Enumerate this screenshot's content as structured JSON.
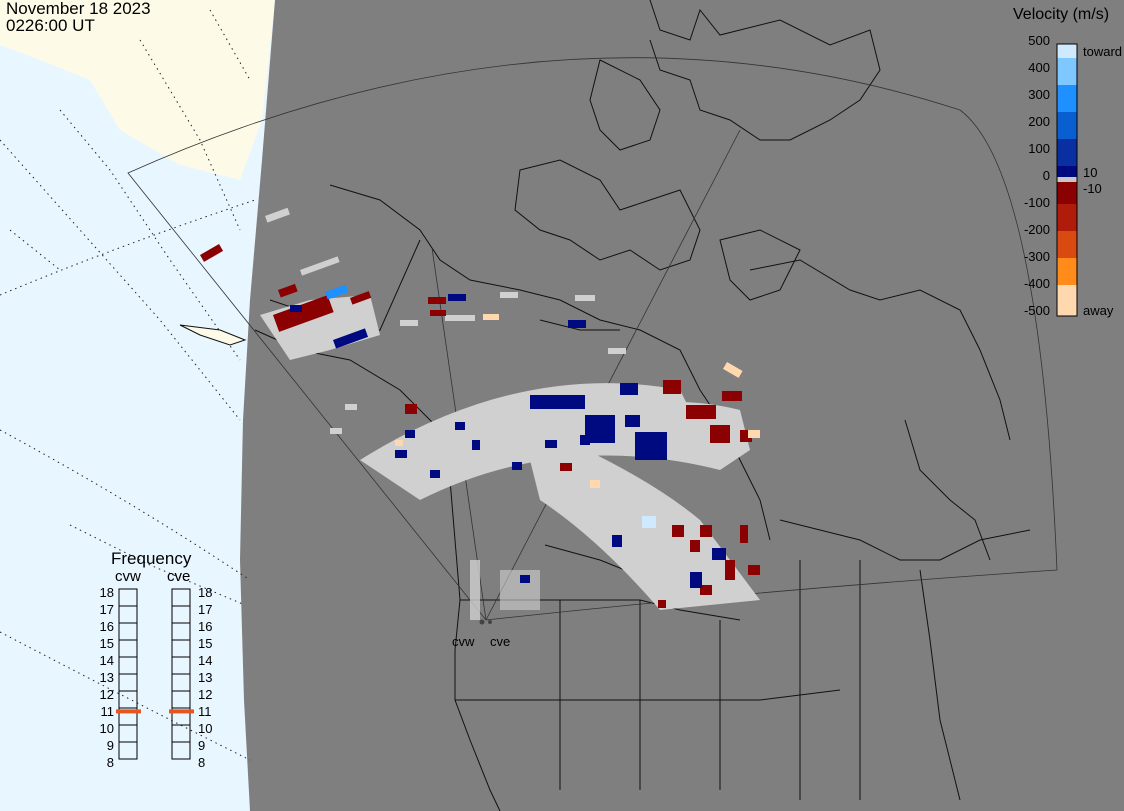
{
  "header": {
    "date": "November 18 2023",
    "time": "0226:00 UT"
  },
  "legend": {
    "title": "Velocity (m/s)",
    "ticks": [
      "500",
      "400",
      "300",
      "200",
      "100",
      "0",
      "-100",
      "-200",
      "-300",
      "-400",
      "-500"
    ],
    "small_ticks": [
      "10",
      "-10"
    ],
    "toward_label": "toward",
    "away_label": "away",
    "colors": [
      "#ffffff",
      "#cfe9ff",
      "#7fc8ff",
      "#1e90ff",
      "#0a5fd0",
      "#0a2fa0",
      "#000a80",
      "#c8c8c8",
      "#8b0000",
      "#b01c0c",
      "#d94a10",
      "#ff8c1a",
      "#ffd8b0"
    ]
  },
  "frequency": {
    "title": "Frequency",
    "radars": [
      {
        "name": "cvw",
        "value_mhz": 10.8
      },
      {
        "name": "cve",
        "value_mhz": 10.8
      }
    ],
    "ticks": [
      "18",
      "17",
      "16",
      "15",
      "14",
      "13",
      "12",
      "11",
      "10",
      "9",
      "8"
    ],
    "indicator_color": "#e8541e"
  },
  "map": {
    "site_labels": [
      "cvw",
      "cve"
    ],
    "land_color": "#7f7f7f",
    "ocean_color": "#e8f6ff",
    "ice_color": "#fdfbe8",
    "scatter_gray": "#d0d0d0"
  }
}
